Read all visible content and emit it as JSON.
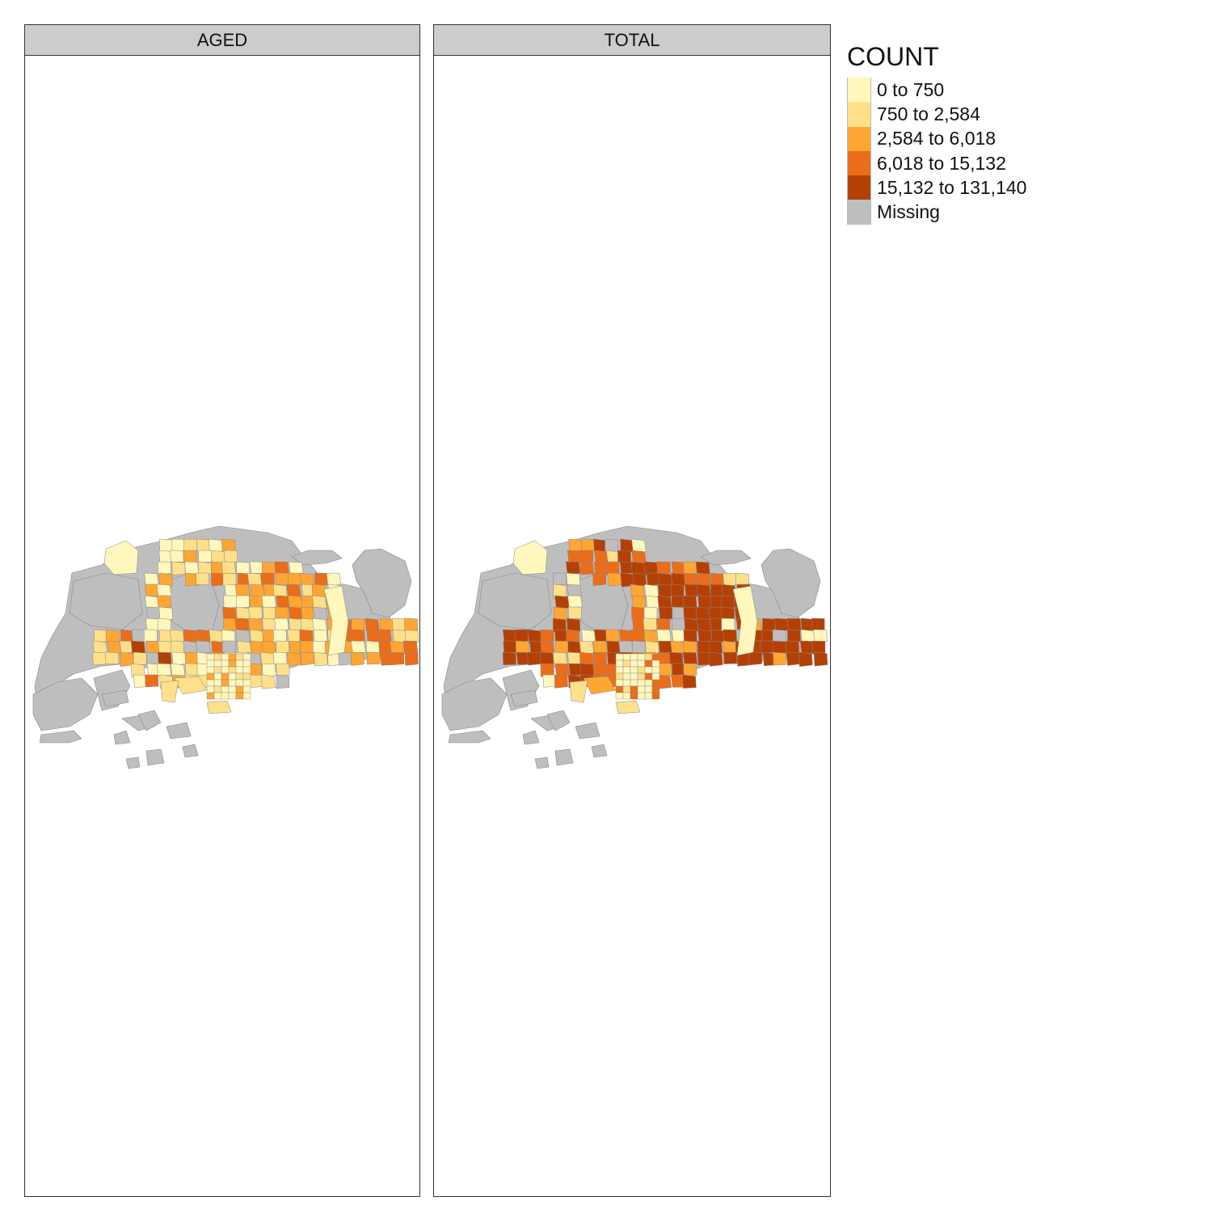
{
  "panels": [
    {
      "title": "AGED"
    },
    {
      "title": "TOTAL"
    }
  ],
  "legend": {
    "title": "COUNT",
    "classes": [
      {
        "label": "0 to 750",
        "color": "#FFF7BC"
      },
      {
        "label": "750 to 2,584",
        "color": "#FEE08B"
      },
      {
        "label": "2,584 to 6,018",
        "color": "#FEA633"
      },
      {
        "label": "6,018 to 15,132",
        "color": "#EA6D1A"
      },
      {
        "label": "15,132 to 131,140",
        "color": "#B54006"
      },
      {
        "label": "Missing",
        "color": "#BEBEBE"
      }
    ]
  },
  "colors": {
    "missing": "#BEBEBE",
    "border": "#888888",
    "background": "#FFFFFF"
  }
}
